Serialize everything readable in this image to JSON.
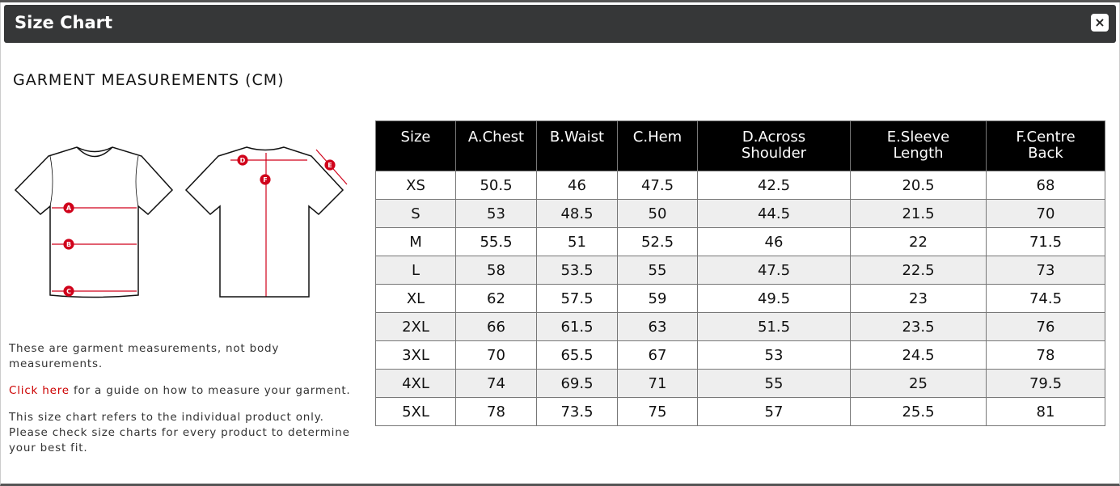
{
  "dialog": {
    "title": "Size Chart",
    "close_label": "×"
  },
  "heading": "GARMENT MEASUREMENTS (CM)",
  "diagram": {
    "front_labels": [
      "A",
      "B",
      "C"
    ],
    "back_labels": [
      "D",
      "E",
      "F"
    ],
    "accent": "#d0021b"
  },
  "notes": {
    "line1": "These are garment measurements, not body measurements.",
    "link": "Click here",
    "line2_rest": " for a guide on how to measure your garment.",
    "line3": "This size chart refers to the individual product only. Please check size charts for every product to determine your best fit."
  },
  "table": {
    "headers": [
      "Size",
      "A.Chest",
      "B.Waist",
      "C.Hem",
      "D.Across Shoulder",
      "E.Sleeve Length",
      "F.Centre Back"
    ],
    "rows": [
      [
        "XS",
        "50.5",
        "46",
        "47.5",
        "42.5",
        "20.5",
        "68"
      ],
      [
        "S",
        "53",
        "48.5",
        "50",
        "44.5",
        "21.5",
        "70"
      ],
      [
        "M",
        "55.5",
        "51",
        "52.5",
        "46",
        "22",
        "71.5"
      ],
      [
        "L",
        "58",
        "53.5",
        "55",
        "47.5",
        "22.5",
        "73"
      ],
      [
        "XL",
        "62",
        "57.5",
        "59",
        "49.5",
        "23",
        "74.5"
      ],
      [
        "2XL",
        "66",
        "61.5",
        "63",
        "51.5",
        "23.5",
        "76"
      ],
      [
        "3XL",
        "70",
        "65.5",
        "67",
        "53",
        "24.5",
        "78"
      ],
      [
        "4XL",
        "74",
        "69.5",
        "71",
        "55",
        "25",
        "79.5"
      ],
      [
        "5XL",
        "78",
        "73.5",
        "75",
        "57",
        "25.5",
        "81"
      ]
    ]
  }
}
